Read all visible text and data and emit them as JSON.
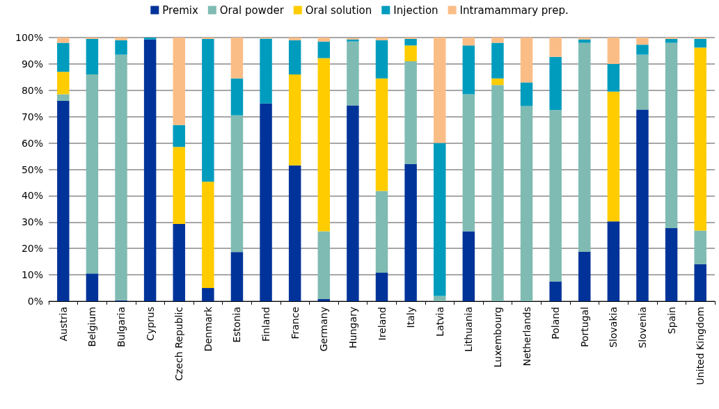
{
  "chart_data": {
    "type": "bar",
    "stacked": true,
    "legend": "top",
    "grid": "y",
    "categories": [
      "Austria",
      "Belgium",
      "Bulgaria",
      "Cyprus",
      "Czech Republic",
      "Denmark",
      "Estonia",
      "Finland",
      "France",
      "Germany",
      "Hungary",
      "Ireland",
      "Italy",
      "Latvia",
      "Lithuania",
      "Luxembourg",
      "Netherlands",
      "Poland",
      "Portugal",
      "Slovakia",
      "Slovenia",
      "Spain",
      "United Kingdom"
    ],
    "ylim": [
      0,
      100
    ],
    "yticks": [
      {
        "value": 0,
        "label": "0%"
      },
      {
        "value": 10,
        "label": "10%"
      },
      {
        "value": 20,
        "label": "20%"
      },
      {
        "value": 30,
        "label": "30%"
      },
      {
        "value": 40,
        "label": "40%"
      },
      {
        "value": 50,
        "label": "50%"
      },
      {
        "value": 60,
        "label": "60%"
      },
      {
        "value": 70,
        "label": "70%"
      },
      {
        "value": 80,
        "label": "80%"
      },
      {
        "value": 90,
        "label": "90%"
      },
      {
        "value": 100,
        "label": "100%"
      }
    ],
    "series": [
      {
        "name": "Premix",
        "color": "#003399",
        "values": [
          76,
          10.5,
          0.3,
          99.3,
          29.3,
          5,
          18.7,
          75,
          51.5,
          0.8,
          74.3,
          10.8,
          52,
          0,
          26.5,
          0,
          0,
          7.5,
          18.8,
          30.3,
          72.7,
          27.7,
          14
        ]
      },
      {
        "name": "Oral powder",
        "color": "#7fbbb2",
        "values": [
          2.5,
          75.5,
          93.2,
          0,
          0,
          0,
          51.8,
          0,
          0,
          25.7,
          24.2,
          31,
          39,
          2,
          52,
          82,
          74,
          65,
          79.2,
          0,
          20.8,
          70.3,
          12.8
        ]
      },
      {
        "name": "Oral solution",
        "color": "#ffcc00",
        "values": [
          8.5,
          0,
          0,
          0,
          29.2,
          40.3,
          0,
          0,
          34.5,
          65.7,
          0,
          42.7,
          6,
          0,
          0,
          2.5,
          0,
          0,
          0,
          49.2,
          0,
          0,
          69.4
        ]
      },
      {
        "name": "Injection",
        "color": "#009cbd",
        "values": [
          11,
          13.5,
          5.5,
          0.7,
          8.3,
          54.2,
          14,
          24.6,
          13,
          6.3,
          0.8,
          14.5,
          2.5,
          58,
          18.5,
          13.5,
          9,
          20.2,
          1.3,
          10.5,
          3.8,
          1.5,
          3.3
        ]
      },
      {
        "name": "Intramammary prep.",
        "color": "#fbbd86",
        "values": [
          2,
          0.5,
          1,
          0,
          33.2,
          0.5,
          15.5,
          0.4,
          1,
          1.5,
          0.5,
          1,
          0.5,
          40,
          3,
          2,
          17,
          7.3,
          0.7,
          10,
          2.7,
          0.5,
          0.5
        ]
      }
    ]
  }
}
